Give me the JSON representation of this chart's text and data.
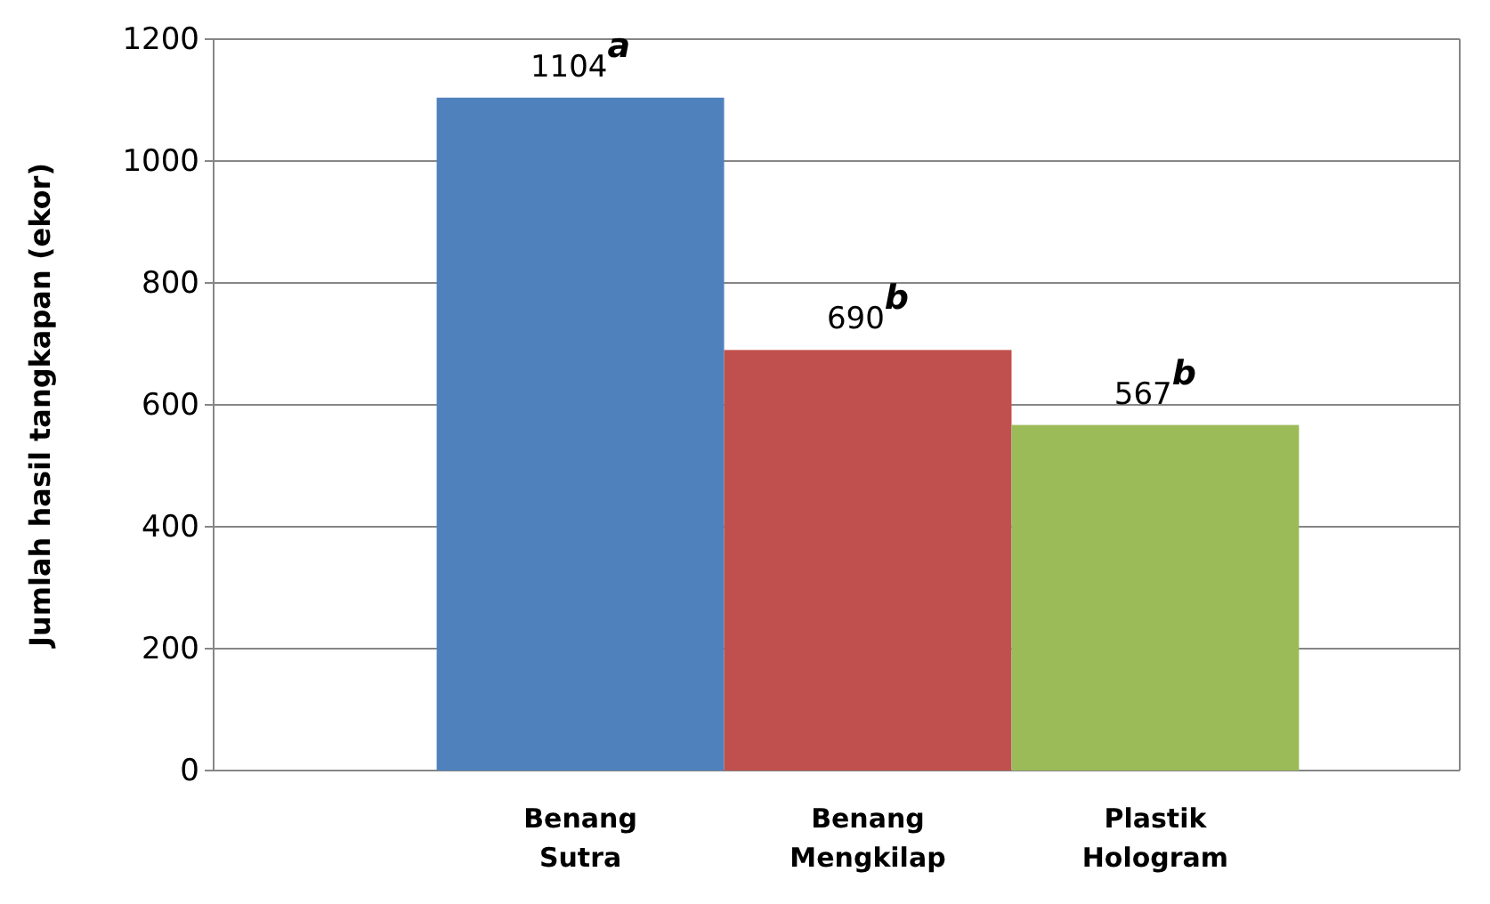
{
  "chart_data": {
    "type": "bar",
    "ylabel": "Jumlah hasil tangkapan (ekor)",
    "categories": [
      "Benang Sutra",
      "Benang Mengkilap",
      "Plastik Hologram"
    ],
    "values": [
      1104,
      690,
      567
    ],
    "colors": [
      "#4f81bd",
      "#c0504d",
      "#9bbb59"
    ],
    "value_labels": [
      "1104$^{a}$",
      "690$^{b}$",
      "567$^{b}$"
    ],
    "ylim": [
      0,
      1200
    ],
    "yticks": [
      0,
      200,
      400,
      600,
      800,
      1000,
      1200
    ],
    "grid": "y"
  }
}
